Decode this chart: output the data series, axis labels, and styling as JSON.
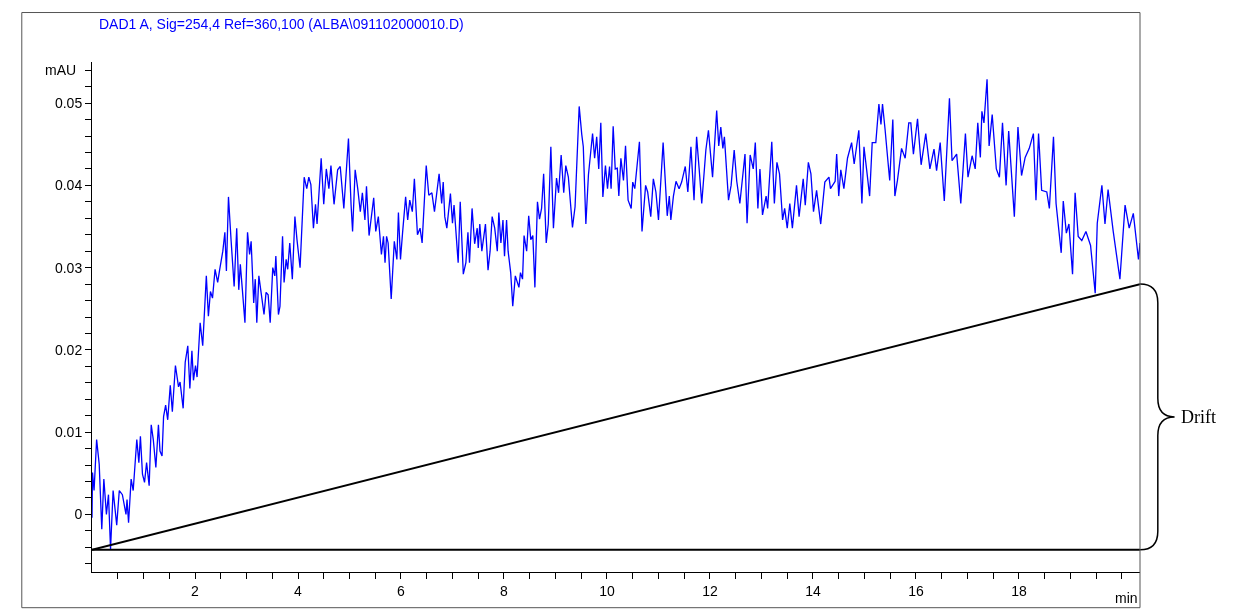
{
  "chart_data": {
    "type": "line",
    "title": "DAD1 A, Sig=254,4 Ref=360,100 (ALBA\\091102000010.D)",
    "xlabel": "min",
    "ylabel": "mAU",
    "xlim": [
      0,
      20.35
    ],
    "ylim": [
      -0.007,
      0.055
    ],
    "xticks": [
      {
        "value": 0.5,
        "label": null
      },
      {
        "value": 1,
        "label": null
      },
      {
        "value": 1.5,
        "label": null
      },
      2,
      {
        "value": 2.5,
        "label": null
      },
      {
        "value": 3,
        "label": null
      },
      {
        "value": 3.5,
        "label": null
      },
      4,
      {
        "value": 4.5,
        "label": null
      },
      {
        "value": 5,
        "label": null
      },
      {
        "value": 5.5,
        "label": null
      },
      6,
      {
        "value": 6.5,
        "label": null
      },
      {
        "value": 7,
        "label": null
      },
      {
        "value": 7.5,
        "label": null
      },
      8,
      {
        "value": 8.5,
        "label": null
      },
      {
        "value": 9,
        "label": null
      },
      {
        "value": 9.5,
        "label": null
      },
      10,
      {
        "value": 10.5,
        "label": null
      },
      {
        "value": 11,
        "label": null
      },
      {
        "value": 11.5,
        "label": null
      },
      12,
      {
        "value": 12.5,
        "label": null
      },
      {
        "value": 13,
        "label": null
      },
      {
        "value": 13.5,
        "label": null
      },
      14,
      {
        "value": 14.5,
        "label": null
      },
      {
        "value": 15,
        "label": null
      },
      {
        "value": 15.5,
        "label": null
      },
      16,
      {
        "value": 16.5,
        "label": null
      },
      {
        "value": 17,
        "label": null
      },
      {
        "value": 17.5,
        "label": null
      },
      18,
      {
        "value": 18.5,
        "label": null
      },
      {
        "value": 19,
        "label": null
      },
      {
        "value": 19.5,
        "label": null
      },
      {
        "value": 20,
        "label": null
      }
    ],
    "yticks": [
      {
        "value": -0.006,
        "label": null
      },
      {
        "value": -0.004,
        "label": null
      },
      {
        "value": -0.002,
        "label": null
      },
      0,
      {
        "value": 0.002,
        "label": null
      },
      {
        "value": 0.004,
        "label": null
      },
      {
        "value": 0.006,
        "label": null
      },
      {
        "value": 0.008,
        "label": null
      },
      0.01,
      {
        "value": 0.012,
        "label": null
      },
      {
        "value": 0.014,
        "label": null
      },
      {
        "value": 0.016,
        "label": null
      },
      {
        "value": 0.018,
        "label": null
      },
      0.02,
      {
        "value": 0.022,
        "label": null
      },
      {
        "value": 0.024,
        "label": null
      },
      {
        "value": 0.026,
        "label": null
      },
      {
        "value": 0.028,
        "label": null
      },
      0.03,
      {
        "value": 0.032,
        "label": null
      },
      {
        "value": 0.034,
        "label": null
      },
      {
        "value": 0.036,
        "label": null
      },
      {
        "value": 0.038,
        "label": null
      },
      0.04,
      {
        "value": 0.042,
        "label": null
      },
      {
        "value": 0.044,
        "label": null
      },
      {
        "value": 0.046,
        "label": null
      },
      {
        "value": 0.048,
        "label": null
      },
      0.05,
      {
        "value": 0.052,
        "label": null
      },
      {
        "value": 0.054,
        "label": null
      }
    ],
    "ref_lines": [
      {
        "axis": "y",
        "value": -0.0043,
        "color": "#000000",
        "line_style": "solid"
      }
    ],
    "annotations": [
      "Drift"
    ],
    "series": [
      {
        "color": "#0000ff",
        "x": [
          0.0,
          0.01,
          0.04,
          0.09,
          0.14,
          0.19,
          0.23,
          0.28,
          0.32,
          0.36,
          0.41,
          0.48,
          0.53,
          0.59,
          0.66,
          0.68,
          0.71,
          0.76,
          0.8,
          0.87,
          0.91,
          0.94,
          0.98,
          1.02,
          1.06,
          1.11,
          1.15,
          1.19,
          1.24,
          1.29,
          1.32,
          1.36,
          1.39,
          1.43,
          1.47,
          1.52,
          1.56,
          1.62,
          1.68,
          1.71,
          1.77,
          1.81,
          1.86,
          1.9,
          1.94,
          1.97,
          2.01,
          2.04,
          2.1,
          2.15,
          2.22,
          2.26,
          2.3,
          2.34,
          2.39,
          2.44,
          2.48,
          2.54,
          2.58,
          2.61,
          2.65,
          2.7,
          2.76,
          2.81,
          2.85,
          2.88,
          2.92,
          2.97,
          3.02,
          3.06,
          3.09,
          3.14,
          3.17,
          3.2,
          3.24,
          3.3,
          3.34,
          3.38,
          3.42,
          3.46,
          3.51,
          3.55,
          3.57,
          3.62,
          3.65,
          3.7,
          3.73,
          3.77,
          3.8,
          3.84,
          3.89,
          3.94,
          3.98,
          4.04,
          4.12,
          4.17,
          4.21,
          4.25,
          4.3,
          4.34,
          4.37,
          4.45,
          4.5,
          4.55,
          4.6,
          4.64,
          4.7,
          4.77,
          4.82,
          4.89,
          4.98,
          5.03,
          5.06,
          5.11,
          5.16,
          5.21,
          5.25,
          5.3,
          5.33,
          5.38,
          5.47,
          5.51,
          5.56,
          5.62,
          5.66,
          5.69,
          5.72,
          5.75,
          5.81,
          5.87,
          5.92,
          5.95,
          5.99,
          6.03,
          6.09,
          6.13,
          6.17,
          6.22,
          6.26,
          6.32,
          6.37,
          6.41,
          6.49,
          6.54,
          6.6,
          6.65,
          6.74,
          6.79,
          6.82,
          6.85,
          6.89,
          6.96,
          7.0,
          7.03,
          7.11,
          7.15,
          7.21,
          7.26,
          7.3,
          7.33,
          7.38,
          7.43,
          7.48,
          7.5,
          7.53,
          7.57,
          7.64,
          7.69,
          7.73,
          7.77,
          7.82,
          7.87,
          7.9,
          7.94,
          7.98,
          8.01,
          8.05,
          8.08,
          8.13,
          8.17,
          8.22,
          8.29,
          8.32,
          8.36,
          8.39,
          8.44,
          8.48,
          8.52,
          8.56,
          8.6,
          8.65,
          8.69,
          8.73,
          8.77,
          8.82,
          8.86,
          8.91,
          8.96,
          9.02,
          9.06,
          9.11,
          9.16,
          9.2,
          9.25,
          9.33,
          9.38,
          9.46,
          9.51,
          9.54,
          9.59,
          9.64,
          9.72,
          9.76,
          9.8,
          9.84,
          9.88,
          9.92,
          9.97,
          10.01,
          10.05,
          10.08,
          10.12,
          10.16,
          10.2,
          10.23,
          10.27,
          10.32,
          10.36,
          10.41,
          10.47,
          10.5,
          10.54,
          10.63,
          10.68,
          10.75,
          10.79,
          10.85,
          10.9,
          10.95,
          11.0,
          11.09,
          11.17,
          11.21,
          11.24,
          11.29,
          11.34,
          11.4,
          11.45,
          11.52,
          11.57,
          11.63,
          11.69,
          11.74,
          11.79,
          11.84,
          11.92,
          11.97,
          12.05,
          12.13,
          12.17,
          12.21,
          12.25,
          12.28,
          12.36,
          12.41,
          12.47,
          12.52,
          12.58,
          12.68,
          12.72,
          12.78,
          12.84,
          12.88,
          12.93,
          12.97,
          13.02,
          13.09,
          13.12,
          13.2,
          13.25,
          13.3,
          13.35,
          13.41,
          13.45,
          13.5,
          13.55,
          13.6,
          13.68,
          13.73,
          13.81,
          13.85,
          13.91,
          13.96,
          14.01,
          14.07,
          14.15,
          14.23,
          14.31,
          14.34,
          14.43,
          14.46,
          14.5,
          14.54,
          14.6,
          14.67,
          14.75,
          14.8,
          14.89,
          14.95,
          14.99,
          15.04,
          15.1,
          15.15,
          15.22,
          15.28,
          15.32,
          15.35,
          15.4,
          15.45,
          15.49,
          15.55,
          15.59,
          15.64,
          15.72,
          15.79,
          15.86,
          15.9,
          15.95,
          16.03,
          16.1,
          16.19,
          16.27,
          16.35,
          16.4,
          16.47,
          16.55,
          16.65,
          16.7,
          16.79,
          16.87,
          16.96,
          17.01,
          17.09,
          17.15,
          17.2,
          17.25,
          17.28,
          17.32,
          17.38,
          17.42,
          17.48,
          17.56,
          17.62,
          17.68,
          17.75,
          17.8,
          17.91,
          17.98,
          18.05,
          18.12,
          18.2,
          18.28,
          18.33,
          18.38,
          18.44,
          18.54,
          18.59,
          18.67,
          18.72,
          18.82,
          18.86,
          18.92,
          18.97,
          19.04,
          19.09,
          19.15,
          19.22,
          19.3,
          19.39,
          19.48,
          19.52,
          19.61,
          19.67,
          19.73,
          19.83,
          19.96,
          20.06,
          20.14,
          20.22,
          20.32,
          20.35
        ],
        "values": [
          -0.0004,
          0.0051,
          0.0029,
          0.0091,
          0.0061,
          -0.0018,
          0.0043,
          0.0,
          0.0024,
          -0.0042,
          0.0029,
          -0.0013,
          0.0029,
          0.0024,
          0.0,
          0.0018,
          -0.001,
          0.0043,
          0.0029,
          0.0091,
          0.0063,
          0.0095,
          0.0049,
          0.0039,
          0.0063,
          0.0035,
          0.0109,
          0.0091,
          0.0057,
          0.0109,
          0.0077,
          0.0071,
          0.0119,
          0.0133,
          0.0115,
          0.0157,
          0.0125,
          0.0181,
          0.0155,
          0.0161,
          0.0129,
          0.0185,
          0.0205,
          0.0153,
          0.0199,
          0.0163,
          0.0181,
          0.0167,
          0.0233,
          0.0205,
          0.029,
          0.0241,
          0.0271,
          0.0263,
          0.0298,
          0.0282,
          0.0298,
          0.032,
          0.0343,
          0.0296,
          0.0386,
          0.0334,
          0.0277,
          0.0348,
          0.0273,
          0.0304,
          0.0273,
          0.0233,
          0.0343,
          0.0316,
          0.0332,
          0.0257,
          0.0286,
          0.0233,
          0.029,
          0.0262,
          0.0243,
          0.027,
          0.0267,
          0.0233,
          0.03,
          0.029,
          0.0314,
          0.0243,
          0.0253,
          0.0338,
          0.0282,
          0.031,
          0.0298,
          0.033,
          0.0286,
          0.0362,
          0.0334,
          0.03,
          0.041,
          0.0396,
          0.041,
          0.0401,
          0.0348,
          0.0377,
          0.0353,
          0.0433,
          0.0377,
          0.042,
          0.0396,
          0.0424,
          0.0377,
          0.0419,
          0.0423,
          0.0372,
          0.0457,
          0.0377,
          0.0344,
          0.0419,
          0.0396,
          0.0368,
          0.0391,
          0.0358,
          0.0399,
          0.0339,
          0.0385,
          0.0344,
          0.0362,
          0.0316,
          0.0338,
          0.0306,
          0.0338,
          0.033,
          0.0262,
          0.0332,
          0.031,
          0.0367,
          0.031,
          0.0342,
          0.0386,
          0.0358,
          0.0382,
          0.0368,
          0.0408,
          0.034,
          0.0348,
          0.033,
          0.0424,
          0.0388,
          0.0391,
          0.0368,
          0.0414,
          0.0378,
          0.0404,
          0.0362,
          0.0348,
          0.039,
          0.0354,
          0.0376,
          0.0306,
          0.038,
          0.0292,
          0.0306,
          0.0343,
          0.0306,
          0.0372,
          0.0329,
          0.0348,
          0.0324,
          0.0353,
          0.032,
          0.0353,
          0.0297,
          0.032,
          0.0362,
          0.0348,
          0.032,
          0.0367,
          0.033,
          0.0358,
          0.0314,
          0.0358,
          0.032,
          0.0294,
          0.0253,
          0.029,
          0.0276,
          0.0294,
          0.0286,
          0.0339,
          0.032,
          0.0363,
          0.0334,
          0.0339,
          0.0276,
          0.038,
          0.0359,
          0.0372,
          0.0414,
          0.033,
          0.0353,
          0.0447,
          0.0348,
          0.0409,
          0.0391,
          0.0437,
          0.0391,
          0.0424,
          0.041,
          0.0349,
          0.0374,
          0.0496,
          0.0462,
          0.0447,
          0.0353,
          0.0413,
          0.0463,
          0.0433,
          0.0459,
          0.042,
          0.0476,
          0.0386,
          0.0424,
          0.0396,
          0.0423,
          0.0396,
          0.0472,
          0.042,
          0.0421,
          0.0387,
          0.0433,
          0.0406,
          0.0448,
          0.0382,
          0.0372,
          0.0404,
          0.0396,
          0.0453,
          0.0344,
          0.04,
          0.0392,
          0.0362,
          0.0408,
          0.0392,
          0.0358,
          0.0452,
          0.0363,
          0.0387,
          0.0358,
          0.0387,
          0.0405,
          0.0396,
          0.0404,
          0.0423,
          0.0392,
          0.0447,
          0.0382,
          0.0459,
          0.042,
          0.0378,
          0.0443,
          0.0467,
          0.041,
          0.0491,
          0.0448,
          0.0471,
          0.0445,
          0.0459,
          0.0382,
          0.04,
          0.0443,
          0.0405,
          0.0378,
          0.0438,
          0.0354,
          0.0437,
          0.042,
          0.0452,
          0.0372,
          0.042,
          0.0364,
          0.0387,
          0.0372,
          0.0453,
          0.0378,
          0.0428,
          0.0414,
          0.0358,
          0.0372,
          0.0348,
          0.0378,
          0.0348,
          0.04,
          0.0362,
          0.0408,
          0.0376,
          0.0428,
          0.0414,
          0.0368,
          0.0394,
          0.0353,
          0.0404,
          0.041,
          0.0396,
          0.0405,
          0.0438,
          0.0387,
          0.0419,
          0.0396,
          0.0433,
          0.0452,
          0.0426,
          0.0467,
          0.0378,
          0.0447,
          0.042,
          0.0387,
          0.0452,
          0.0452,
          0.0499,
          0.0474,
          0.0499,
          0.0468,
          0.0433,
          0.0406,
          0.048,
          0.0387,
          0.0406,
          0.0445,
          0.0433,
          0.0476,
          0.0476,
          0.0438,
          0.0481,
          0.0425,
          0.0463,
          0.042,
          0.0444,
          0.0418,
          0.0452,
          0.0381,
          0.0506,
          0.043,
          0.0438,
          0.0378,
          0.0463,
          0.041,
          0.0436,
          0.042,
          0.0476,
          0.0434,
          0.049,
          0.0476,
          0.0529,
          0.0448,
          0.0486,
          0.042,
          0.041,
          0.0476,
          0.04,
          0.0466,
          0.0362,
          0.0471,
          0.0412,
          0.0434,
          0.0445,
          0.0463,
          0.0382,
          0.0463,
          0.0394,
          0.0392,
          0.0372,
          0.0459,
          0.0378,
          0.0318,
          0.0381,
          0.0342,
          0.0353,
          0.0292,
          0.0391,
          0.0338,
          0.0333,
          0.0344,
          0.0327,
          0.0269,
          0.0354,
          0.04,
          0.0353,
          0.0395,
          0.0344,
          0.0286,
          0.0376,
          0.0348,
          0.0366,
          0.031,
          0.033
        ]
      },
      {
        "type": "line",
        "color": "#000000",
        "x": [
          0,
          20.35
        ],
        "values": [
          -0.0043,
          0.028
        ]
      }
    ]
  }
}
